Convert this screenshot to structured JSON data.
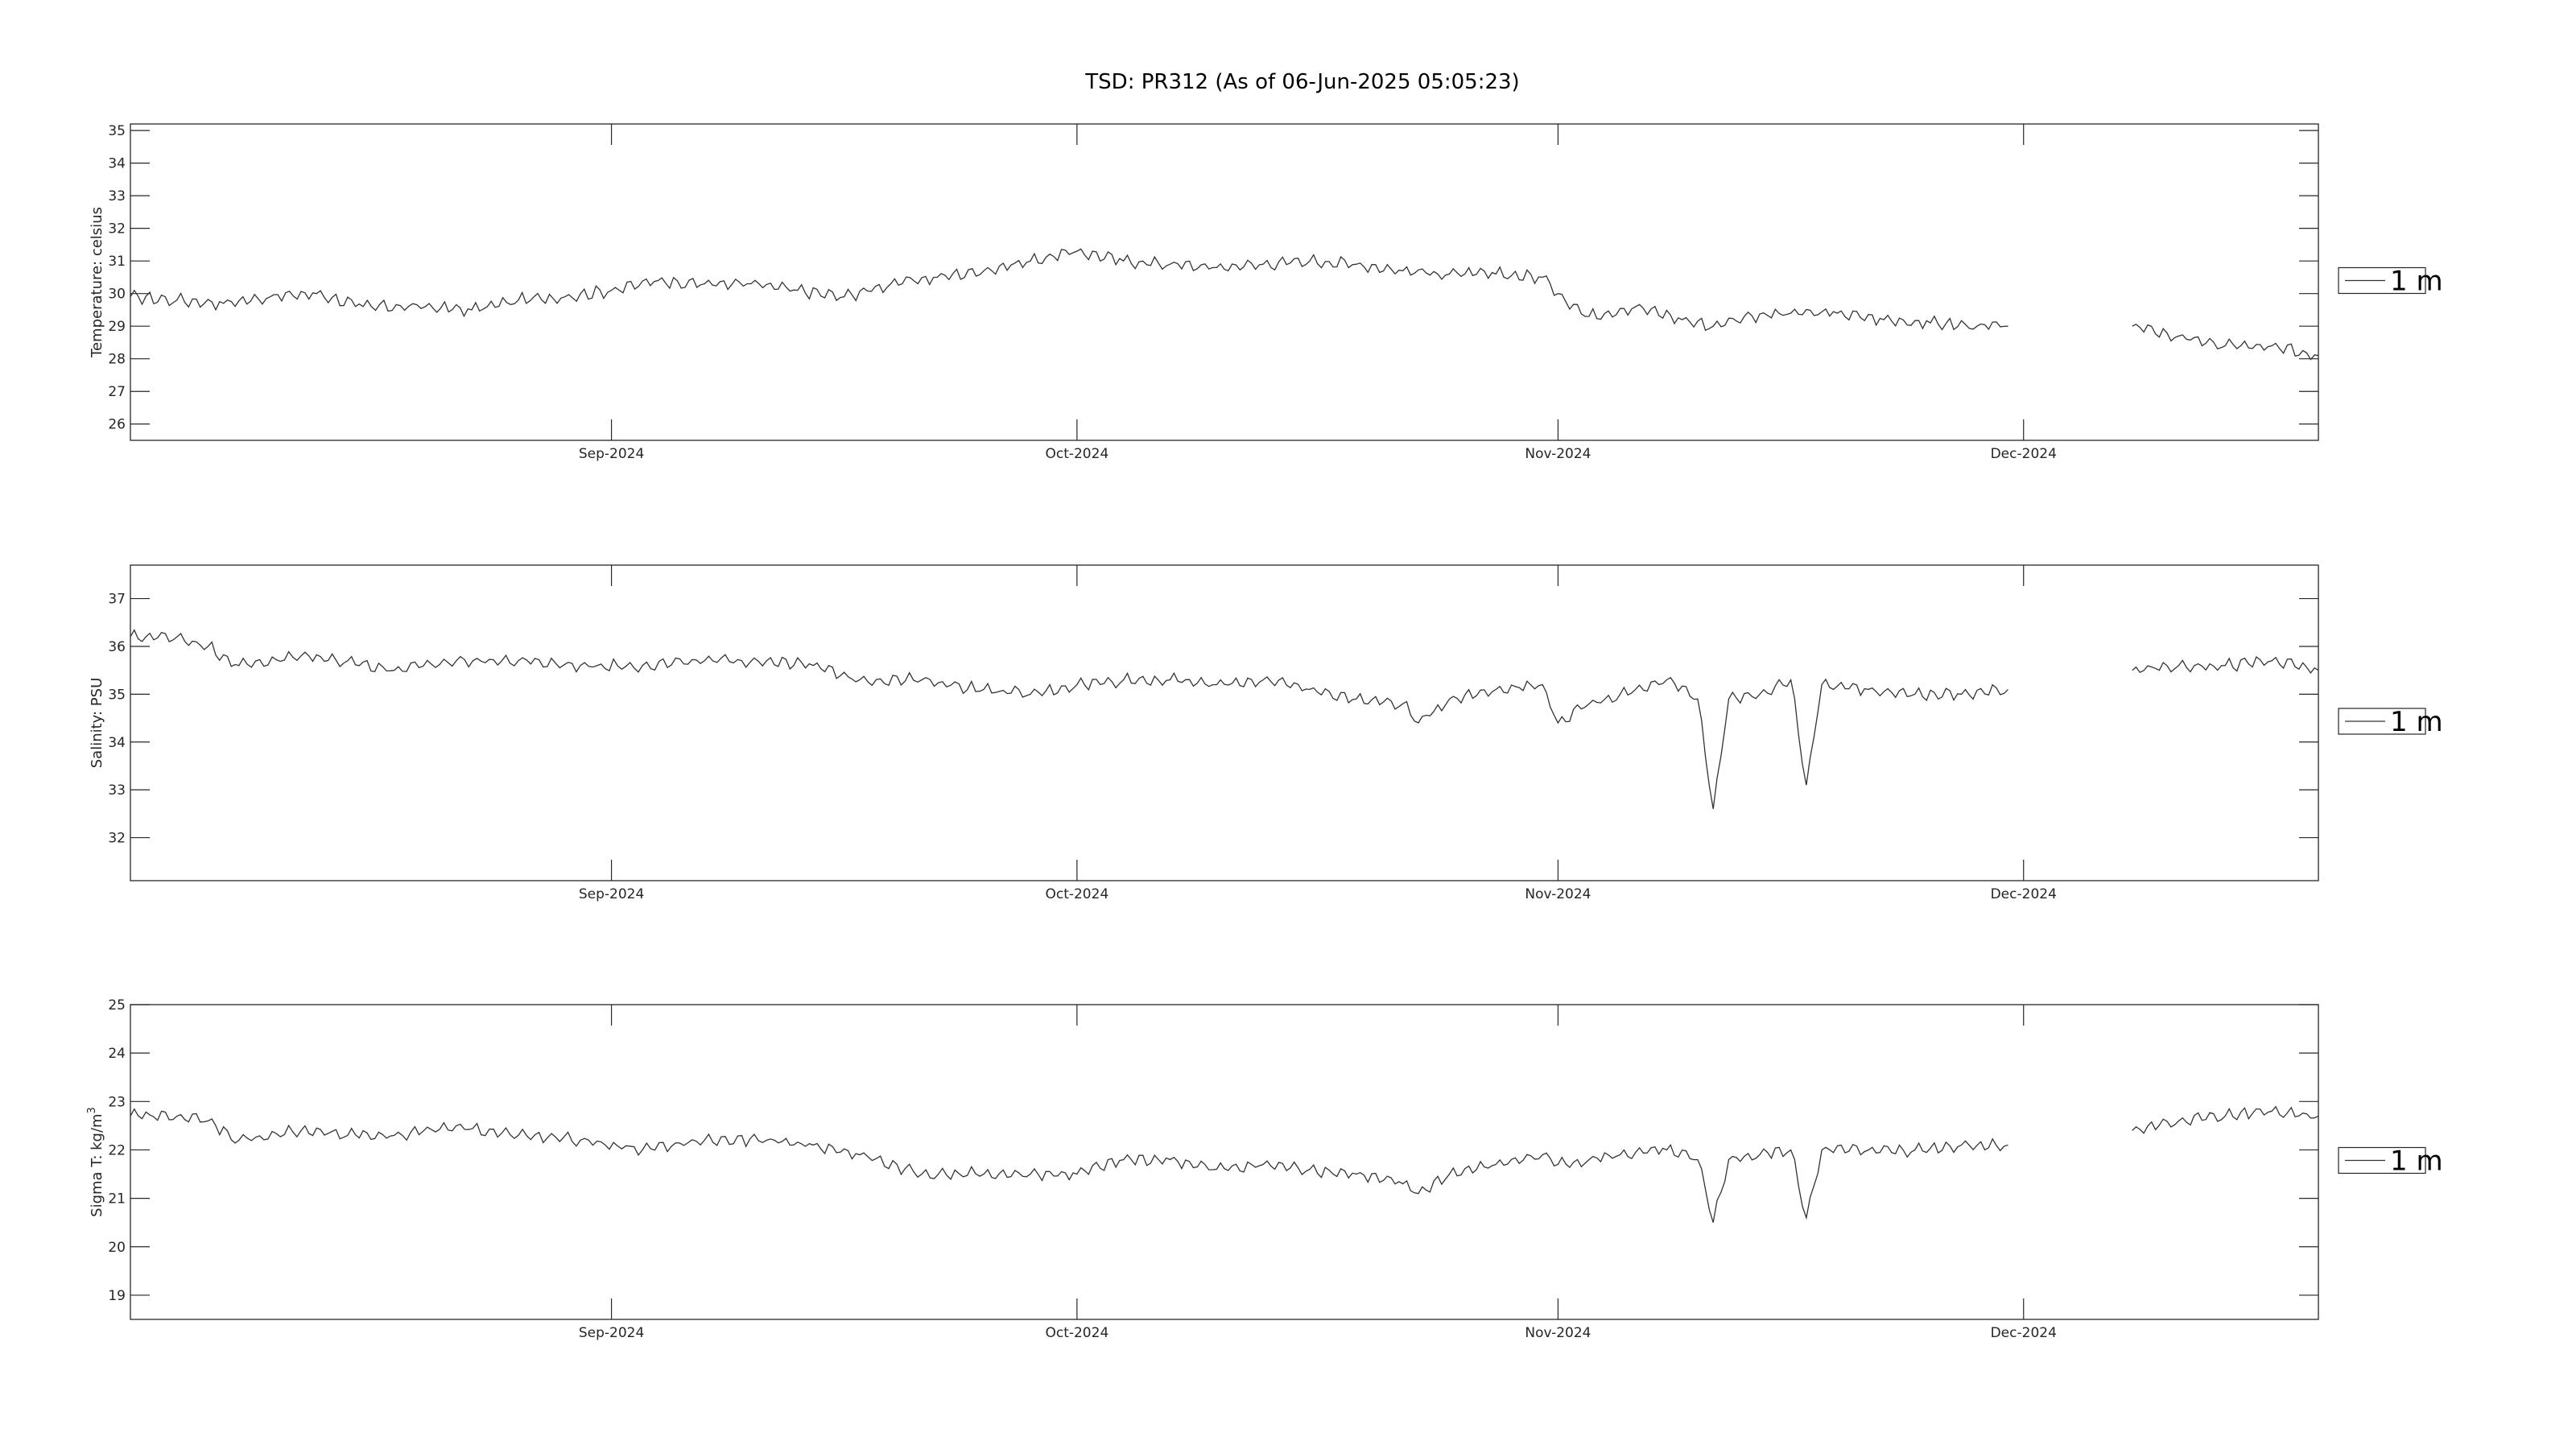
{
  "figure": {
    "title": "TSD: PR312 (As of 06-Jun-2025 05:05:23)"
  },
  "chart_data": [
    {
      "type": "line",
      "title": "TSD: PR312 (As of 06-Jun-2025 05:05:23)",
      "ylabel": "Temperature:  celsius",
      "ylabel_html": "",
      "xlim": [
        "2024-08-01",
        "2024-12-20"
      ],
      "ylim": [
        25.5,
        35.2
      ],
      "yticks": [
        26,
        27,
        28,
        29,
        30,
        31,
        32,
        33,
        34,
        35
      ],
      "xticks": [
        {
          "date": "2024-09-01",
          "label": "Sep-2024"
        },
        {
          "date": "2024-10-01",
          "label": "Oct-2024"
        },
        {
          "date": "2024-11-01",
          "label": "Nov-2024"
        },
        {
          "date": "2024-12-01",
          "label": "Dec-2024"
        }
      ],
      "grid": false,
      "legend_position": "outside-right",
      "series": [
        {
          "name": "1 m",
          "color": "#333333",
          "segments": [
            {
              "x": [
                "2024-08-01",
                "2024-08-04",
                "2024-08-07",
                "2024-08-10",
                "2024-08-13",
                "2024-08-16",
                "2024-08-20",
                "2024-08-23",
                "2024-08-26",
                "2024-08-29",
                "2024-09-01",
                "2024-09-04",
                "2024-09-07",
                "2024-09-10",
                "2024-09-13",
                "2024-09-16",
                "2024-09-19",
                "2024-09-22",
                "2024-09-25",
                "2024-09-28",
                "2024-10-01",
                "2024-10-04",
                "2024-10-07",
                "2024-10-10",
                "2024-10-13",
                "2024-10-16",
                "2024-10-19",
                "2024-10-22",
                "2024-10-25",
                "2024-10-28",
                "2024-10-31",
                "2024-11-01",
                "2024-11-03",
                "2024-11-06",
                "2024-11-09",
                "2024-11-11",
                "2024-11-13",
                "2024-11-16",
                "2024-11-19",
                "2024-11-22",
                "2024-11-25",
                "2024-11-28",
                "2024-11-30"
              ],
              "y": [
                29.9,
                29.8,
                29.7,
                29.9,
                30.0,
                29.6,
                29.6,
                29.5,
                29.8,
                29.9,
                30.1,
                30.4,
                30.3,
                30.3,
                30.1,
                29.9,
                30.3,
                30.5,
                30.7,
                31.0,
                31.3,
                31.0,
                30.9,
                30.8,
                30.9,
                31.0,
                30.9,
                30.7,
                30.6,
                30.6,
                30.5,
                30.0,
                29.3,
                29.6,
                29.2,
                29.0,
                29.3,
                29.4,
                29.4,
                29.2,
                29.1,
                29.0,
                29.0
              ]
            },
            {
              "x": [
                "2024-12-08",
                "2024-12-11",
                "2024-12-14",
                "2024-12-17",
                "2024-12-20"
              ],
              "y": [
                29.0,
                28.7,
                28.4,
                28.4,
                28.1
              ]
            }
          ]
        }
      ]
    },
    {
      "type": "line",
      "ylabel": "Salinity:  PSU",
      "xlim": [
        "2024-08-01",
        "2024-12-20"
      ],
      "ylim": [
        31.1,
        37.7
      ],
      "yticks": [
        32,
        33,
        34,
        35,
        36,
        37
      ],
      "xticks": [
        {
          "date": "2024-09-01",
          "label": "Sep-2024"
        },
        {
          "date": "2024-10-01",
          "label": "Oct-2024"
        },
        {
          "date": "2024-11-01",
          "label": "Nov-2024"
        },
        {
          "date": "2024-12-01",
          "label": "Dec-2024"
        }
      ],
      "grid": false,
      "legend_position": "outside-right",
      "series": [
        {
          "name": "1 m",
          "color": "#333333",
          "segments": [
            {
              "x": [
                "2024-08-01",
                "2024-08-04",
                "2024-08-06",
                "2024-08-08",
                "2024-08-12",
                "2024-08-15",
                "2024-08-18",
                "2024-08-22",
                "2024-08-26",
                "2024-08-30",
                "2024-09-03",
                "2024-09-07",
                "2024-09-11",
                "2024-09-14",
                "2024-09-17",
                "2024-09-21",
                "2024-09-25",
                "2024-09-28",
                "2024-10-01",
                "2024-10-04",
                "2024-10-07",
                "2024-10-10",
                "2024-10-13",
                "2024-10-16",
                "2024-10-19",
                "2024-10-22",
                "2024-10-23",
                "2024-10-25",
                "2024-10-28",
                "2024-10-31",
                "2024-11-01",
                "2024-11-03",
                "2024-11-05",
                "2024-11-08",
                "2024-11-10",
                "2024-11-11",
                "2024-11-12",
                "2024-11-14",
                "2024-11-16",
                "2024-11-17",
                "2024-11-18",
                "2024-11-21",
                "2024-11-24",
                "2024-11-27",
                "2024-11-30"
              ],
              "y": [
                36.2,
                36.2,
                36.0,
                35.6,
                35.8,
                35.7,
                35.5,
                35.7,
                35.7,
                35.6,
                35.6,
                35.7,
                35.7,
                35.6,
                35.3,
                35.3,
                35.1,
                35.0,
                35.2,
                35.3,
                35.3,
                35.2,
                35.3,
                35.1,
                34.9,
                34.8,
                34.4,
                34.9,
                35.1,
                35.2,
                34.4,
                34.8,
                35.0,
                35.3,
                34.9,
                32.6,
                34.9,
                35.0,
                35.3,
                33.1,
                35.2,
                35.1,
                35.0,
                35.0,
                35.1
              ]
            },
            {
              "x": [
                "2024-12-08",
                "2024-12-11",
                "2024-12-14",
                "2024-12-17",
                "2024-12-20"
              ],
              "y": [
                35.5,
                35.6,
                35.6,
                35.7,
                35.5
              ]
            }
          ]
        }
      ]
    },
    {
      "type": "line",
      "ylabel": "Sigma T:  kg/m",
      "ylabel_sup": "3",
      "xlim": [
        "2024-08-01",
        "2024-12-20"
      ],
      "ylim": [
        18.5,
        25.0
      ],
      "yticks": [
        19,
        20,
        21,
        22,
        23,
        24,
        25
      ],
      "xticks": [
        {
          "date": "2024-09-01",
          "label": "Sep-2024"
        },
        {
          "date": "2024-10-01",
          "label": "Oct-2024"
        },
        {
          "date": "2024-11-01",
          "label": "Nov-2024"
        },
        {
          "date": "2024-12-01",
          "label": "Dec-2024"
        }
      ],
      "grid": false,
      "legend_position": "outside-right",
      "series": [
        {
          "name": "1 m",
          "color": "#333333",
          "segments": [
            {
              "x": [
                "2024-08-01",
                "2024-08-04",
                "2024-08-06",
                "2024-08-08",
                "2024-08-12",
                "2024-08-15",
                "2024-08-18",
                "2024-08-22",
                "2024-08-26",
                "2024-08-30",
                "2024-09-03",
                "2024-09-07",
                "2024-09-11",
                "2024-09-14",
                "2024-09-17",
                "2024-09-21",
                "2024-09-25",
                "2024-09-28",
                "2024-10-01",
                "2024-10-04",
                "2024-10-07",
                "2024-10-10",
                "2024-10-13",
                "2024-10-16",
                "2024-10-19",
                "2024-10-22",
                "2024-10-23",
                "2024-10-25",
                "2024-10-28",
                "2024-10-31",
                "2024-11-01",
                "2024-11-03",
                "2024-11-05",
                "2024-11-08",
                "2024-11-10",
                "2024-11-11",
                "2024-11-12",
                "2024-11-14",
                "2024-11-16",
                "2024-11-17",
                "2024-11-18",
                "2024-11-21",
                "2024-11-24",
                "2024-11-27",
                "2024-11-30"
              ],
              "y": [
                22.7,
                22.7,
                22.6,
                22.2,
                22.4,
                22.3,
                22.3,
                22.5,
                22.3,
                22.2,
                22.0,
                22.2,
                22.2,
                22.1,
                21.9,
                21.5,
                21.5,
                21.5,
                21.5,
                21.8,
                21.8,
                21.6,
                21.7,
                21.6,
                21.5,
                21.3,
                21.1,
                21.5,
                21.7,
                21.9,
                21.7,
                21.8,
                21.9,
                22.0,
                21.8,
                20.5,
                21.8,
                21.9,
                22.0,
                20.6,
                22.0,
                22.0,
                22.0,
                22.1,
                22.1
              ]
            },
            {
              "x": [
                "2024-12-08",
                "2024-12-11",
                "2024-12-14",
                "2024-12-17",
                "2024-12-20"
              ],
              "y": [
                22.4,
                22.6,
                22.7,
                22.8,
                22.7
              ]
            }
          ]
        }
      ]
    }
  ]
}
